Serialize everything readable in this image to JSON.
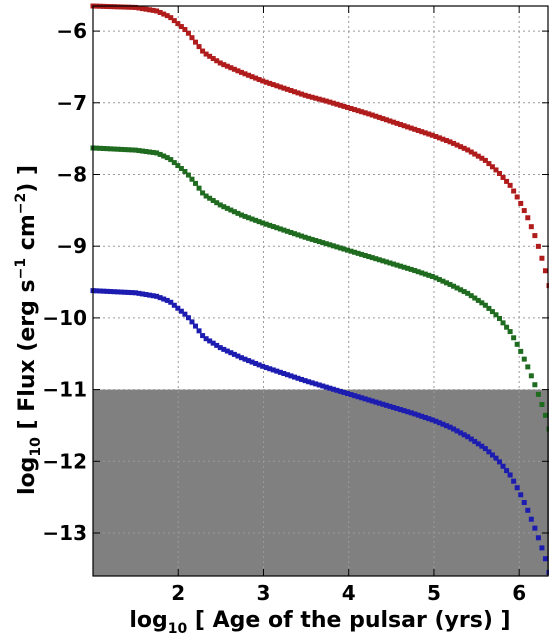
{
  "chart_data": {
    "type": "scatter",
    "xlabel": {
      "prefix": "log",
      "sub": "10",
      "text": " [ Age of the pulsar (yrs) ]"
    },
    "ylabel": {
      "prefix": "log",
      "sub": "10",
      "part1": " [ Flux (erg s",
      "sup1": "−1",
      "part2": " cm",
      "sup2": "−2",
      "part3": ") ]"
    },
    "xlim": [
      1.0,
      6.35
    ],
    "ylim": [
      -13.6,
      -5.65
    ],
    "xticks": [
      2,
      3,
      4,
      5,
      6
    ],
    "xtick_labels": [
      "2",
      "3",
      "4",
      "5",
      "6"
    ],
    "yticks": [
      -6,
      -7,
      -8,
      -9,
      -10,
      -11,
      -12,
      -13
    ],
    "ytick_labels": [
      "−6",
      "−7",
      "−8",
      "−9",
      "−10",
      "−11",
      "−12",
      "−13"
    ],
    "grid": true,
    "shaded_region": {
      "y_from": -13.6,
      "y_to": -11.0,
      "color": "#808080"
    },
    "series": [
      {
        "color": "#b01c1c",
        "x": [
          1.0,
          1.5,
          1.75,
          1.9,
          2.0,
          2.1,
          2.2,
          2.3,
          2.5,
          2.75,
          3.0,
          3.25,
          3.5,
          3.75,
          4.0,
          4.25,
          4.5,
          4.75,
          5.0,
          5.2,
          5.4,
          5.6,
          5.75,
          5.9,
          6.0,
          6.1,
          6.2,
          6.3,
          6.35
        ],
        "y": [
          -5.65,
          -5.67,
          -5.72,
          -5.8,
          -5.9,
          -6.0,
          -6.15,
          -6.3,
          -6.45,
          -6.58,
          -6.7,
          -6.8,
          -6.9,
          -6.98,
          -7.07,
          -7.16,
          -7.26,
          -7.36,
          -7.46,
          -7.55,
          -7.66,
          -7.8,
          -7.96,
          -8.16,
          -8.36,
          -8.6,
          -8.9,
          -9.3,
          -9.55
        ]
      },
      {
        "color": "#1f6b1f",
        "x": [
          1.0,
          1.5,
          1.75,
          1.9,
          2.0,
          2.1,
          2.2,
          2.3,
          2.5,
          2.75,
          3.0,
          3.25,
          3.5,
          3.75,
          4.0,
          4.25,
          4.5,
          4.75,
          5.0,
          5.2,
          5.4,
          5.6,
          5.75,
          5.9,
          6.0,
          6.1,
          6.2,
          6.3,
          6.35
        ],
        "y": [
          -7.63,
          -7.66,
          -7.7,
          -7.78,
          -7.88,
          -7.98,
          -8.12,
          -8.28,
          -8.43,
          -8.57,
          -8.68,
          -8.78,
          -8.88,
          -8.97,
          -9.06,
          -9.15,
          -9.24,
          -9.33,
          -9.43,
          -9.54,
          -9.66,
          -9.82,
          -9.98,
          -10.2,
          -10.42,
          -10.68,
          -10.98,
          -11.32,
          -11.55
        ]
      },
      {
        "color": "#1c1cb0",
        "x": [
          1.0,
          1.5,
          1.75,
          1.9,
          2.0,
          2.1,
          2.2,
          2.3,
          2.5,
          2.75,
          3.0,
          3.25,
          3.5,
          3.75,
          4.0,
          4.25,
          4.5,
          4.75,
          5.0,
          5.2,
          5.4,
          5.6,
          5.75,
          5.9,
          6.0,
          6.1,
          6.2,
          6.3,
          6.35
        ],
        "y": [
          -9.62,
          -9.65,
          -9.7,
          -9.77,
          -9.87,
          -9.97,
          -10.11,
          -10.27,
          -10.42,
          -10.56,
          -10.68,
          -10.78,
          -10.88,
          -10.97,
          -11.06,
          -11.15,
          -11.24,
          -11.33,
          -11.43,
          -11.53,
          -11.66,
          -11.82,
          -11.98,
          -12.2,
          -12.42,
          -12.68,
          -12.98,
          -13.32,
          -13.55
        ]
      }
    ]
  }
}
